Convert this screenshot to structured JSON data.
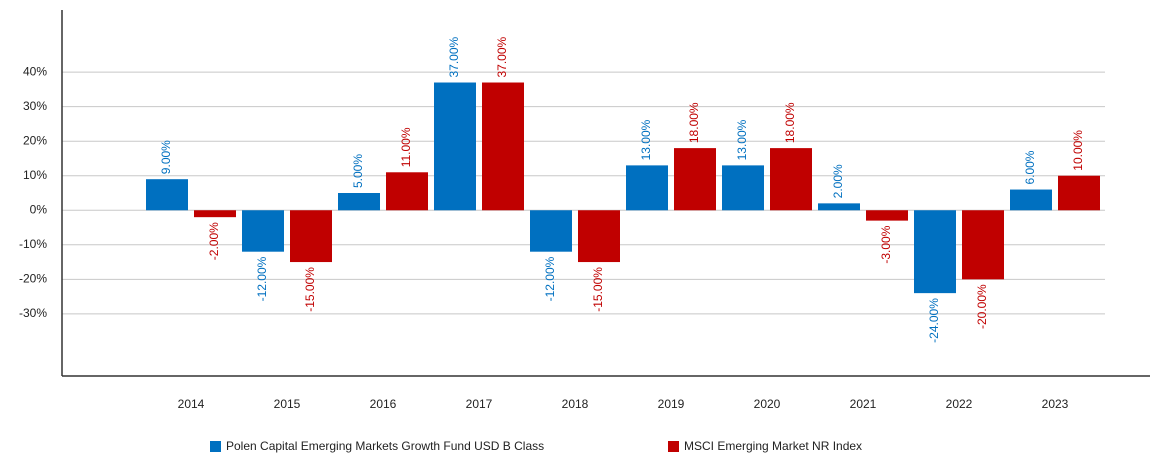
{
  "chart_data": {
    "type": "bar",
    "categories": [
      "2014",
      "2015",
      "2016",
      "2017",
      "2018",
      "2019",
      "2020",
      "2021",
      "2022",
      "2023"
    ],
    "series": [
      {
        "name": "Polen Capital Emerging Markets Growth Fund USD B Class",
        "color": "#0070c0",
        "values": [
          9,
          -12,
          5,
          37,
          -12,
          13,
          13,
          2,
          -24,
          6
        ],
        "value_labels": [
          "9.00%",
          "-12.00%",
          "5.00%",
          "37.00%",
          "-12.00%",
          "13.00%",
          "13.00%",
          "2.00%",
          "-24.00%",
          "6.00%"
        ]
      },
      {
        "name": "MSCI Emerging Market NR Index",
        "color": "#c00000",
        "values": [
          -2,
          -15,
          11,
          37,
          -15,
          18,
          18,
          -3,
          -20,
          10
        ],
        "value_labels": [
          "-2.00%",
          "-15.00%",
          "11.00%",
          "37.00%",
          "-15.00%",
          "18.00%",
          "18.00%",
          "-3.00%",
          "-20.00%",
          "10.00%"
        ]
      }
    ],
    "ylim": [
      -48,
      58
    ],
    "yticks": [
      {
        "value": -30,
        "label": "-30%"
      },
      {
        "value": -20,
        "label": "-20%"
      },
      {
        "value": -10,
        "label": "-10%"
      },
      {
        "value": 0,
        "label": "0%"
      },
      {
        "value": 10,
        "label": "10%"
      },
      {
        "value": 20,
        "label": "20%"
      },
      {
        "value": 30,
        "label": "30%"
      },
      {
        "value": 40,
        "label": "40%"
      }
    ],
    "grid": true,
    "legend": "bottom"
  }
}
